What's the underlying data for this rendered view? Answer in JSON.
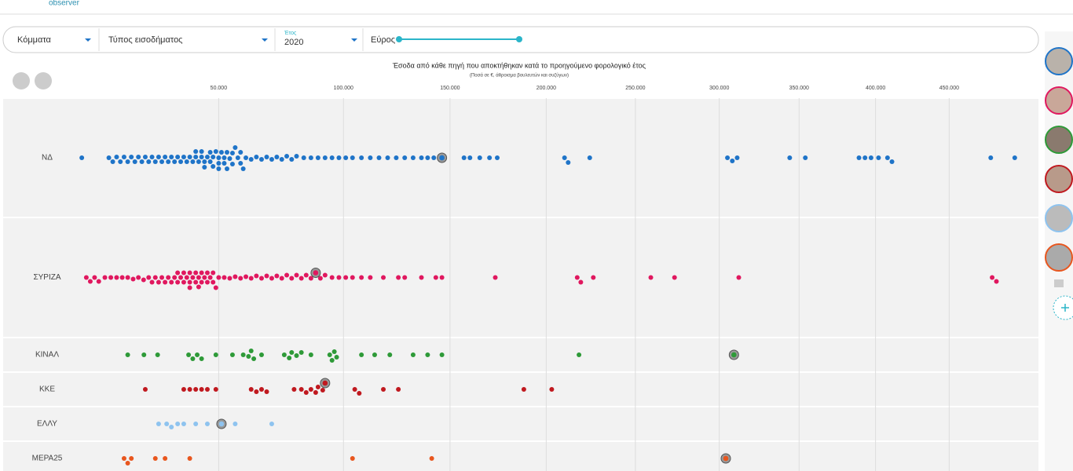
{
  "brand": "observer",
  "filters": {
    "party": "Κόμματα",
    "income_type": "Τύπος εισοδήματος",
    "year_label": "Έτος",
    "year": "2020",
    "range": "Εύρος"
  },
  "chart_data": {
    "type": "beeswarm",
    "title": "Έσοδα από κάθε πηγή που αποκτήθηκαν κατά το προηγούμενο φορολογικό έτος",
    "subtitle": "(Ποσά σε €, άθροισμα βουλευτών και συζύγων)",
    "xscale": "pow",
    "xexponent": 0.7,
    "xlim": [
      0,
      500000
    ],
    "xticks": [
      {
        "value": 50000,
        "label": "50.000"
      },
      {
        "value": 100000,
        "label": "100.000"
      },
      {
        "value": 150000,
        "label": "150.000"
      },
      {
        "value": 200000,
        "label": "200.000"
      },
      {
        "value": 250000,
        "label": "250.000"
      },
      {
        "value": 300000,
        "label": "300.000"
      },
      {
        "value": 350000,
        "label": "350.000"
      },
      {
        "value": 400000,
        "label": "400.000"
      },
      {
        "value": 450000,
        "label": "450.000"
      }
    ],
    "grid": true,
    "series": [
      {
        "name": "ΝΔ",
        "color": "#1f74c8",
        "highlight": 146000,
        "values": [
          9600,
          16000,
          17000,
          18000,
          19000,
          20000,
          21000,
          22000,
          23000,
          24000,
          25000,
          26000,
          27000,
          28000,
          29000,
          30000,
          31000,
          32000,
          33000,
          34000,
          35000,
          36000,
          37000,
          38000,
          39000,
          40000,
          41000,
          42000,
          43000,
          44000,
          45000,
          46000,
          47000,
          48000,
          49000,
          50000,
          51000,
          52000,
          53000,
          54000,
          55000,
          56000,
          57000,
          58000,
          59000,
          60000,
          42000,
          44000,
          45000,
          47000,
          48000,
          50000,
          50000,
          52000,
          53000,
          55000,
          58000,
          62000,
          64000,
          66000,
          68000,
          70000,
          72000,
          74000,
          76000,
          78000,
          80000,
          83000,
          86000,
          89000,
          92000,
          95000,
          98000,
          101000,
          104000,
          108000,
          112000,
          116000,
          120000,
          124000,
          128000,
          132000,
          136000,
          139000,
          142000,
          157000,
          160000,
          165000,
          170000,
          174000,
          210000,
          212000,
          224000,
          305000,
          308000,
          311000,
          344000,
          354000,
          389000,
          393000,
          397000,
          402000,
          408000,
          411000,
          479000,
          496000
        ]
      },
      {
        "name": "ΣΥΡΙΖΑ",
        "color": "#e0185f",
        "highlight": 88000,
        "values": [
          10600,
          11500,
          12500,
          13500,
          15000,
          16500,
          18000,
          19500,
          21000,
          22500,
          24000,
          25500,
          27000,
          28000,
          29000,
          30000,
          31000,
          32000,
          33000,
          34000,
          35000,
          36000,
          37000,
          38000,
          39000,
          40000,
          41000,
          42000,
          43000,
          44000,
          45000,
          46000,
          47000,
          48000,
          49000,
          50000,
          36000,
          38000,
          40000,
          42000,
          44000,
          46000,
          48000,
          40000,
          43000,
          52000,
          54000,
          56000,
          58000,
          60000,
          62000,
          64000,
          66000,
          68000,
          70000,
          72000,
          74000,
          76000,
          78000,
          80000,
          82000,
          84000,
          86000,
          90000,
          92000,
          95000,
          98000,
          101000,
          104000,
          108000,
          112000,
          118000,
          125000,
          128000,
          136000,
          143000,
          146000,
          173000,
          217000,
          219000,
          226000,
          259000,
          273000,
          312000,
          480000,
          483000
        ]
      },
      {
        "name": "ΚΙΝΑΛ",
        "color": "#2e9a38",
        "highlight": 309000,
        "values": [
          21000,
          25600,
          29700,
          39600,
          41000,
          42500,
          44000,
          49000,
          55000,
          59000,
          61000,
          62000,
          63000,
          66000,
          75000,
          77000,
          78000,
          80000,
          82000,
          86000,
          94000,
          95000,
          96000,
          97000,
          108000,
          114000,
          121000,
          132000,
          139000,
          146000,
          218000
        ]
      },
      {
        "name": "ΚΚΕ",
        "color": "#c0191f",
        "highlight": 92000,
        "values": [
          26000,
          38000,
          40000,
          42000,
          44000,
          46000,
          49000,
          62000,
          64000,
          66000,
          68000,
          79000,
          82000,
          84000,
          86000,
          88000,
          89000,
          91000,
          105000,
          107000,
          118000,
          125000,
          188000,
          203000
        ]
      },
      {
        "name": "ΕΛΛΥ",
        "color": "#8ec3ef",
        "highlight": 51000,
        "values": [
          30000,
          32500,
          34000,
          36000,
          38000,
          42000,
          46000,
          56000,
          70000
        ]
      },
      {
        "name": "ΜΕΡΑ25",
        "color": "#e8561e",
        "highlight": 304000,
        "values": [
          20000,
          21000,
          22000,
          29000,
          32000,
          40000,
          104000,
          141000
        ]
      }
    ]
  }
}
